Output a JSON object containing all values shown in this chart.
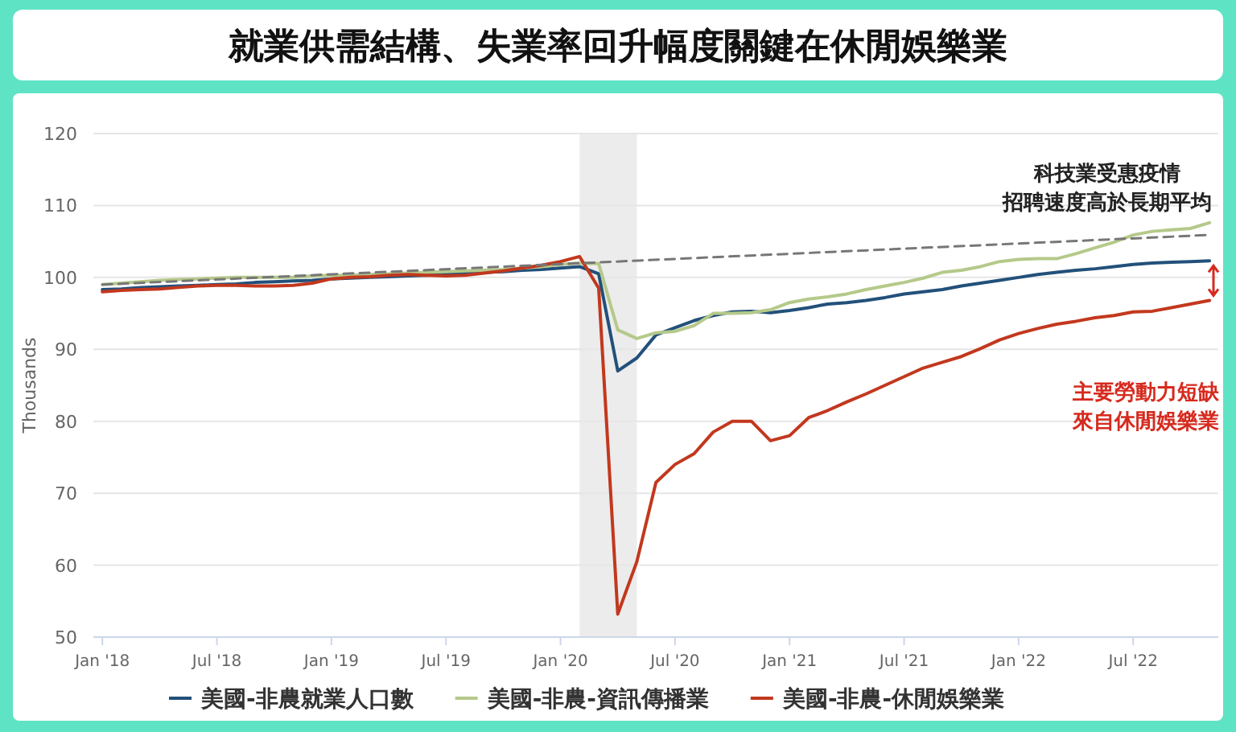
{
  "chart_data": {
    "type": "line",
    "title": "就業供需結構、失業率回升幅度關鍵在休閒娛樂業",
    "ylabel": "Thousands",
    "x": [
      "2018-01",
      "2018-02",
      "2018-03",
      "2018-04",
      "2018-05",
      "2018-06",
      "2018-07",
      "2018-08",
      "2018-09",
      "2018-10",
      "2018-11",
      "2018-12",
      "2019-01",
      "2019-02",
      "2019-03",
      "2019-04",
      "2019-05",
      "2019-06",
      "2019-07",
      "2019-08",
      "2019-09",
      "2019-10",
      "2019-11",
      "2019-12",
      "2020-01",
      "2020-02",
      "2020-03",
      "2020-04",
      "2020-05",
      "2020-06",
      "2020-07",
      "2020-08",
      "2020-09",
      "2020-10",
      "2020-11",
      "2020-12",
      "2021-01",
      "2021-02",
      "2021-03",
      "2021-04",
      "2021-05",
      "2021-06",
      "2021-07",
      "2021-08",
      "2021-09",
      "2021-10",
      "2021-11",
      "2021-12",
      "2022-01",
      "2022-02",
      "2022-03",
      "2022-04",
      "2022-05",
      "2022-06",
      "2022-07",
      "2022-08",
      "2022-09",
      "2022-10",
      "2022-11"
    ],
    "series": [
      {
        "name": "美國-非農就業人口數",
        "color": "#22507a",
        "values": [
          98.3,
          98.4,
          98.6,
          98.7,
          98.8,
          98.9,
          99.0,
          99.1,
          99.3,
          99.4,
          99.5,
          99.6,
          99.8,
          99.9,
          100.0,
          100.1,
          100.2,
          100.3,
          100.5,
          100.6,
          100.7,
          100.8,
          101.0,
          101.1,
          101.3,
          101.5,
          100.5,
          87,
          88.8,
          92,
          93,
          94,
          94.7,
          95.2,
          95.3,
          95.1,
          95.4,
          95.8,
          96.3,
          96.5,
          96.8,
          97.2,
          97.7,
          98.0,
          98.3,
          98.8,
          99.2,
          99.6,
          100.0,
          100.4,
          100.7,
          101.0,
          101.2,
          101.5,
          101.8,
          102.0,
          102.1,
          102.2,
          102.3
        ]
      },
      {
        "name": "美國-非農-資訊傳播業",
        "color": "#b5c98a",
        "values": [
          99.0,
          99.2,
          99.4,
          99.6,
          99.7,
          99.8,
          99.9,
          100.0,
          100.0,
          100.0,
          100.0,
          100.2,
          100.3,
          100.3,
          100.4,
          100.5,
          100.6,
          100.7,
          100.8,
          100.9,
          101.0,
          101.1,
          101.3,
          101.5,
          101.8,
          102.0,
          101.9,
          92.7,
          91.5,
          92.3,
          92.5,
          93.3,
          95,
          95,
          95.1,
          95.5,
          96.5,
          97,
          97.3,
          97.7,
          98.3,
          98.8,
          99.3,
          99.9,
          100.7,
          101,
          101.5,
          102.2,
          102.5,
          102.6,
          102.6,
          103.3,
          104.1,
          104.9,
          105.9,
          106.4,
          106.6,
          106.8,
          107.6
        ]
      },
      {
        "name": "美國-非農-休閒娛樂業",
        "color": "#c2381e",
        "values": [
          98.0,
          98.2,
          98.3,
          98.4,
          98.6,
          98.8,
          98.9,
          98.9,
          98.8,
          98.8,
          98.9,
          99.2,
          99.8,
          100.0,
          100.1,
          100.3,
          100.4,
          100.3,
          100.2,
          100.3,
          100.6,
          100.9,
          101.3,
          101.7,
          102.2,
          102.9,
          98.5,
          53.2,
          60.5,
          71.5,
          74,
          75.5,
          78.5,
          80,
          80,
          77.3,
          78,
          80.5,
          81.5,
          82.7,
          83.8,
          85,
          86.2,
          87.4,
          88.2,
          89,
          90.1,
          91.3,
          92.2,
          92.9,
          93.5,
          93.9,
          94.4,
          94.7,
          95.2,
          95.3,
          95.8,
          96.3,
          96.8
        ]
      },
      {
        "type": "line",
        "color": "#777777",
        "line_style": "dashed",
        "x": [
          "2018-01",
          "2022-11"
        ],
        "values": [
          99.0,
          105.9
        ]
      }
    ],
    "xlim": [
      "2017-12-17",
      "2022-11-15"
    ],
    "ylim": [
      50,
      120
    ],
    "yticks": [
      50,
      60,
      70,
      80,
      90,
      100,
      110,
      120
    ],
    "xticks": [
      {
        "value": "2018-01",
        "label": "Jan '18"
      },
      {
        "value": "2018-07",
        "label": "Jul '18"
      },
      {
        "value": "2019-01",
        "label": "Jan '19"
      },
      {
        "value": "2019-07",
        "label": "Jul '19"
      },
      {
        "value": "2020-01",
        "label": "Jan '20"
      },
      {
        "value": "2020-07",
        "label": "Jul '20"
      },
      {
        "value": "2021-01",
        "label": "Jan '21"
      },
      {
        "value": "2021-07",
        "label": "Jul '21"
      },
      {
        "value": "2022-01",
        "label": "Jan '22"
      },
      {
        "value": "2022-07",
        "label": "Jul '22"
      }
    ],
    "bands": [
      {
        "axis": "x",
        "from": "2020-02",
        "to": "2020-05",
        "color": "#ececec"
      }
    ],
    "annotations": [
      "科技業受惠疫情",
      "招聘速度高於長期平均",
      "主要勞動力短缺",
      "來自休閒娛樂業"
    ],
    "grid": "y",
    "legend": "bottom"
  }
}
